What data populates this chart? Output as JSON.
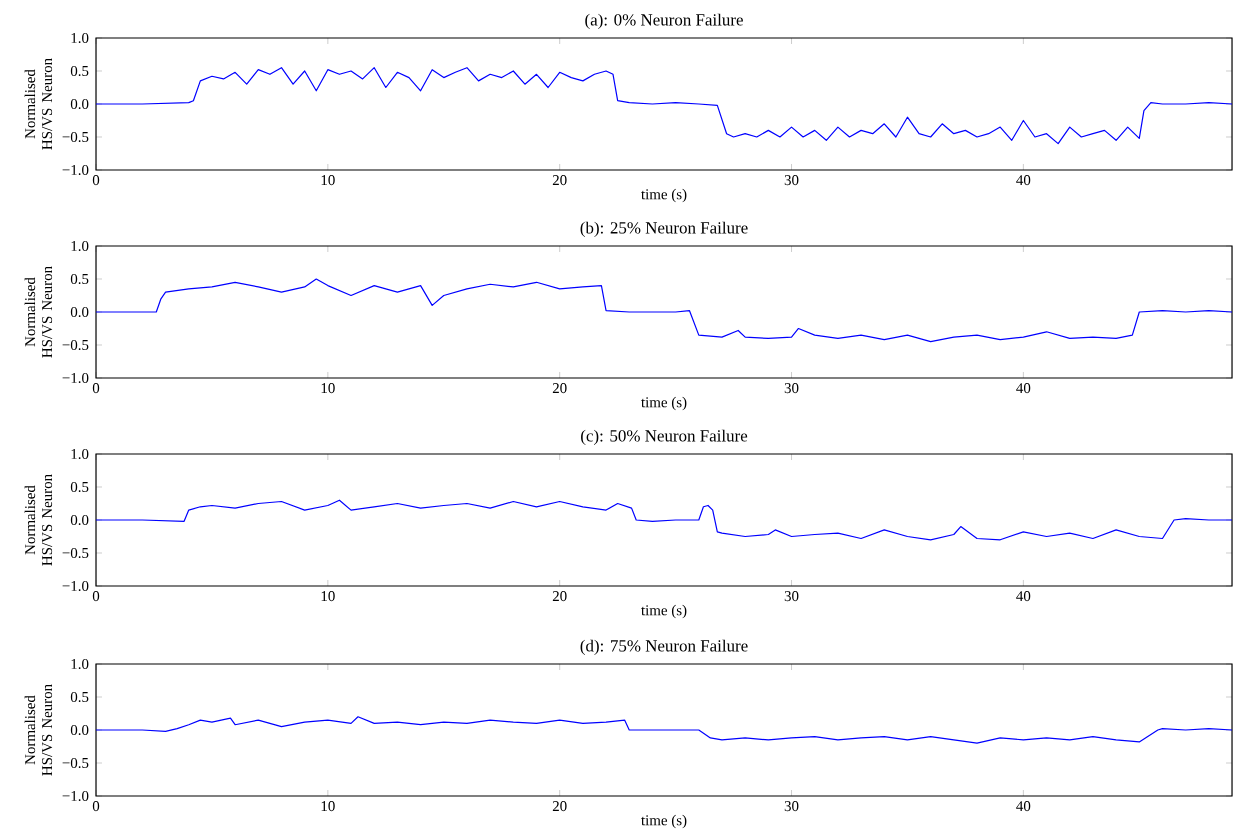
{
  "chart_data": [
    {
      "type": "line",
      "title": "(a): 0% Neuron Failure",
      "xlabel": "time (s)",
      "ylabel": "Normalised HS/VS Neuron",
      "color": "#0000ff",
      "xlim": [
        0,
        49
      ],
      "ylim": [
        -1,
        1
      ],
      "xticks": [
        0,
        10,
        20,
        30,
        40
      ],
      "yticks": [
        {
          "value": -1,
          "label": "−1.0"
        },
        {
          "value": -0.5,
          "label": "−0.5"
        },
        {
          "value": 0,
          "label": "0.0"
        },
        {
          "value": 0.5,
          "label": "0.5"
        },
        {
          "value": 1,
          "label": "1.0"
        }
      ],
      "x": [
        0,
        2,
        4,
        4.2,
        4.5,
        5,
        5.5,
        6,
        6.5,
        7,
        7.5,
        8,
        8.5,
        9,
        9.5,
        10,
        10.5,
        11,
        11.5,
        12,
        12.5,
        13,
        13.5,
        14,
        14.5,
        15,
        15.5,
        16,
        16.5,
        17,
        17.5,
        18,
        18.5,
        19,
        19.5,
        20,
        20.5,
        21,
        21.5,
        22,
        22.3,
        22.5,
        23,
        24,
        25,
        26,
        26.8,
        27.2,
        27.5,
        28,
        28.5,
        29,
        29.5,
        30,
        30.5,
        31,
        31.5,
        32,
        32.5,
        33,
        33.5,
        34,
        34.5,
        35,
        35.5,
        36,
        36.5,
        37,
        37.5,
        38,
        38.5,
        39,
        39.5,
        40,
        40.5,
        41,
        41.5,
        42,
        42.5,
        43,
        43.5,
        44,
        44.5,
        45,
        45.2,
        45.5,
        46,
        47,
        48,
        49
      ],
      "values": [
        0,
        0,
        0.02,
        0.05,
        0.35,
        0.42,
        0.38,
        0.48,
        0.3,
        0.52,
        0.45,
        0.55,
        0.3,
        0.5,
        0.2,
        0.52,
        0.45,
        0.5,
        0.38,
        0.55,
        0.25,
        0.48,
        0.4,
        0.2,
        0.52,
        0.4,
        0.48,
        0.55,
        0.35,
        0.45,
        0.4,
        0.5,
        0.3,
        0.45,
        0.25,
        0.48,
        0.4,
        0.35,
        0.45,
        0.5,
        0.45,
        0.05,
        0.02,
        0.0,
        0.02,
        0.0,
        -0.02,
        -0.45,
        -0.5,
        -0.45,
        -0.5,
        -0.4,
        -0.5,
        -0.35,
        -0.5,
        -0.4,
        -0.55,
        -0.35,
        -0.5,
        -0.4,
        -0.45,
        -0.3,
        -0.5,
        -0.2,
        -0.45,
        -0.5,
        -0.3,
        -0.45,
        -0.4,
        -0.5,
        -0.45,
        -0.35,
        -0.55,
        -0.25,
        -0.5,
        -0.45,
        -0.6,
        -0.35,
        -0.5,
        -0.45,
        -0.4,
        -0.55,
        -0.35,
        -0.52,
        -0.1,
        0.02,
        0.0,
        0.0,
        0.02,
        0.0
      ]
    },
    {
      "type": "line",
      "title": "(b): 25% Neuron Failure",
      "xlabel": "time (s)",
      "ylabel": "Normalised HS/VS Neuron",
      "color": "#0000ff",
      "xlim": [
        0,
        49
      ],
      "ylim": [
        -1,
        1
      ],
      "xticks": [
        0,
        10,
        20,
        30,
        40
      ],
      "yticks": [
        {
          "value": -1,
          "label": "−1.0"
        },
        {
          "value": -0.5,
          "label": "−0.5"
        },
        {
          "value": 0,
          "label": "0.0"
        },
        {
          "value": 0.5,
          "label": "0.5"
        },
        {
          "value": 1,
          "label": "1.0"
        }
      ],
      "x": [
        0,
        2.6,
        2.8,
        3,
        4,
        5,
        6,
        7,
        8,
        9,
        9.5,
        10,
        11,
        12,
        13,
        14,
        14.5,
        15,
        16,
        17,
        18,
        19,
        20,
        21,
        21.8,
        22,
        23,
        24,
        25,
        25.6,
        26,
        27,
        27.7,
        28,
        29,
        30,
        30.3,
        31,
        32,
        33,
        34,
        35,
        36,
        37,
        38,
        39,
        40,
        41,
        42,
        43,
        44,
        44.7,
        45,
        46,
        47,
        48,
        49
      ],
      "values": [
        0,
        0,
        0.2,
        0.3,
        0.35,
        0.38,
        0.45,
        0.38,
        0.3,
        0.38,
        0.5,
        0.4,
        0.25,
        0.4,
        0.3,
        0.4,
        0.1,
        0.25,
        0.35,
        0.42,
        0.38,
        0.45,
        0.35,
        0.38,
        0.4,
        0.02,
        0.0,
        0.0,
        0.0,
        0.02,
        -0.35,
        -0.38,
        -0.28,
        -0.38,
        -0.4,
        -0.38,
        -0.25,
        -0.35,
        -0.4,
        -0.35,
        -0.42,
        -0.35,
        -0.45,
        -0.38,
        -0.35,
        -0.42,
        -0.38,
        -0.3,
        -0.4,
        -0.38,
        -0.4,
        -0.35,
        0.0,
        0.02,
        0.0,
        0.02,
        0.0
      ]
    },
    {
      "type": "line",
      "title": "(c): 50% Neuron Failure",
      "xlabel": "time (s)",
      "ylabel": "Normalised HS/VS Neuron",
      "color": "#0000ff",
      "xlim": [
        0,
        49
      ],
      "ylim": [
        -1,
        1
      ],
      "xticks": [
        0,
        10,
        20,
        30,
        40
      ],
      "yticks": [
        {
          "value": -1,
          "label": "−1.0"
        },
        {
          "value": -0.5,
          "label": "−0.5"
        },
        {
          "value": 0,
          "label": "0.0"
        },
        {
          "value": 0.5,
          "label": "0.5"
        },
        {
          "value": 1,
          "label": "1.0"
        }
      ],
      "x": [
        0,
        2,
        3.8,
        4,
        4.5,
        5,
        6,
        7,
        8,
        9,
        10,
        10.5,
        11,
        12,
        13,
        14,
        15,
        16,
        17,
        18,
        19,
        20,
        21,
        22,
        22.5,
        23.1,
        23.3,
        24,
        25,
        26,
        26.2,
        26.4,
        26.6,
        26.8,
        27,
        28,
        29,
        29.3,
        30,
        31,
        32,
        33,
        34,
        35,
        36,
        37,
        37.3,
        38,
        39,
        40,
        41,
        42,
        43,
        44,
        45,
        46,
        46.5,
        47,
        48,
        49
      ],
      "values": [
        0,
        0,
        -0.02,
        0.15,
        0.2,
        0.22,
        0.18,
        0.25,
        0.28,
        0.15,
        0.22,
        0.3,
        0.15,
        0.2,
        0.25,
        0.18,
        0.22,
        0.25,
        0.18,
        0.28,
        0.2,
        0.28,
        0.2,
        0.15,
        0.25,
        0.18,
        0.0,
        -0.02,
        0.0,
        0.0,
        0.2,
        0.22,
        0.15,
        -0.18,
        -0.2,
        -0.25,
        -0.22,
        -0.15,
        -0.25,
        -0.22,
        -0.2,
        -0.28,
        -0.15,
        -0.25,
        -0.3,
        -0.22,
        -0.1,
        -0.28,
        -0.3,
        -0.18,
        -0.25,
        -0.2,
        -0.28,
        -0.15,
        -0.25,
        -0.28,
        0.0,
        0.02,
        0.0,
        0.0
      ]
    },
    {
      "type": "line",
      "title": "(d): 75% Neuron Failure",
      "xlabel": "time (s)",
      "ylabel": "Normalised HS/VS Neuron",
      "color": "#0000ff",
      "xlim": [
        0,
        49
      ],
      "ylim": [
        -1,
        1
      ],
      "xticks": [
        0,
        10,
        20,
        30,
        40
      ],
      "yticks": [
        {
          "value": -1,
          "label": "−1.0"
        },
        {
          "value": -0.5,
          "label": "−0.5"
        },
        {
          "value": 0,
          "label": "0.0"
        },
        {
          "value": 0.5,
          "label": "0.5"
        },
        {
          "value": 1,
          "label": "1.0"
        }
      ],
      "x": [
        0,
        2,
        3,
        3.5,
        4,
        4.5,
        5,
        5.8,
        6,
        7,
        8,
        9,
        10,
        11,
        11.3,
        12,
        13,
        14,
        15,
        16,
        17,
        18,
        19,
        20,
        21,
        22,
        22.8,
        23,
        24,
        25,
        26,
        26.5,
        27,
        28,
        29,
        30,
        31,
        32,
        33,
        34,
        35,
        36,
        37,
        38,
        39,
        40,
        41,
        42,
        43,
        44,
        45,
        45.8,
        46,
        47,
        48,
        49
      ],
      "values": [
        0,
        0,
        -0.02,
        0.02,
        0.08,
        0.15,
        0.12,
        0.18,
        0.08,
        0.15,
        0.05,
        0.12,
        0.15,
        0.1,
        0.2,
        0.1,
        0.12,
        0.08,
        0.12,
        0.1,
        0.15,
        0.12,
        0.1,
        0.15,
        0.1,
        0.12,
        0.15,
        0.0,
        0.0,
        0.0,
        0.0,
        -0.12,
        -0.15,
        -0.12,
        -0.15,
        -0.12,
        -0.1,
        -0.15,
        -0.12,
        -0.1,
        -0.15,
        -0.1,
        -0.15,
        -0.2,
        -0.12,
        -0.15,
        -0.12,
        -0.15,
        -0.1,
        -0.15,
        -0.18,
        0.0,
        0.02,
        0.0,
        0.02,
        0.0
      ]
    }
  ]
}
